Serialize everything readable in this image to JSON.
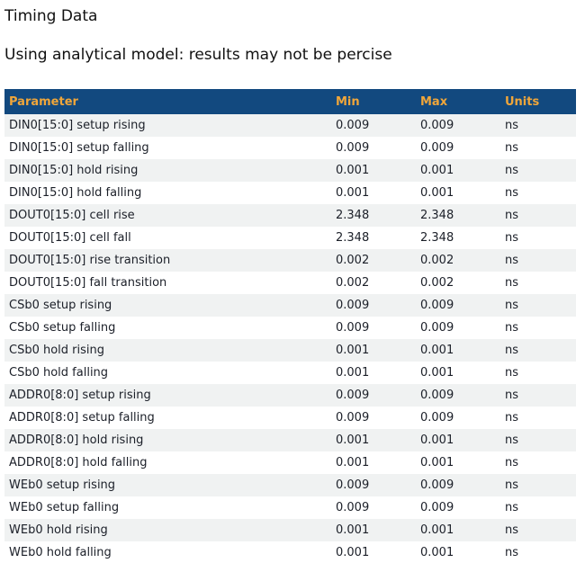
{
  "page": {
    "title": "Timing Data",
    "subtitle": "Using analytical model: results may not be percise"
  },
  "table": {
    "columns": [
      "Parameter",
      "Min",
      "Max",
      "Units"
    ],
    "rows": [
      {
        "parameter": "DIN0[15:0] setup rising",
        "min": "0.009",
        "max": "0.009",
        "units": "ns"
      },
      {
        "parameter": "DIN0[15:0] setup falling",
        "min": "0.009",
        "max": "0.009",
        "units": "ns"
      },
      {
        "parameter": "DIN0[15:0] hold rising",
        "min": "0.001",
        "max": "0.001",
        "units": "ns"
      },
      {
        "parameter": "DIN0[15:0] hold falling",
        "min": "0.001",
        "max": "0.001",
        "units": "ns"
      },
      {
        "parameter": "DOUT0[15:0] cell rise",
        "min": "2.348",
        "max": "2.348",
        "units": "ns"
      },
      {
        "parameter": "DOUT0[15:0] cell fall",
        "min": "2.348",
        "max": "2.348",
        "units": "ns"
      },
      {
        "parameter": "DOUT0[15:0] rise transition",
        "min": "0.002",
        "max": "0.002",
        "units": "ns"
      },
      {
        "parameter": "DOUT0[15:0] fall transition",
        "min": "0.002",
        "max": "0.002",
        "units": "ns"
      },
      {
        "parameter": "CSb0 setup rising",
        "min": "0.009",
        "max": "0.009",
        "units": "ns"
      },
      {
        "parameter": "CSb0 setup falling",
        "min": "0.009",
        "max": "0.009",
        "units": "ns"
      },
      {
        "parameter": "CSb0 hold rising",
        "min": "0.001",
        "max": "0.001",
        "units": "ns"
      },
      {
        "parameter": "CSb0 hold falling",
        "min": "0.001",
        "max": "0.001",
        "units": "ns"
      },
      {
        "parameter": "ADDR0[8:0] setup rising",
        "min": "0.009",
        "max": "0.009",
        "units": "ns"
      },
      {
        "parameter": "ADDR0[8:0] setup falling",
        "min": "0.009",
        "max": "0.009",
        "units": "ns"
      },
      {
        "parameter": "ADDR0[8:0] hold rising",
        "min": "0.001",
        "max": "0.001",
        "units": "ns"
      },
      {
        "parameter": "ADDR0[8:0] hold falling",
        "min": "0.001",
        "max": "0.001",
        "units": "ns"
      },
      {
        "parameter": "WEb0 setup rising",
        "min": "0.009",
        "max": "0.009",
        "units": "ns"
      },
      {
        "parameter": "WEb0 setup falling",
        "min": "0.009",
        "max": "0.009",
        "units": "ns"
      },
      {
        "parameter": "WEb0 hold rising",
        "min": "0.001",
        "max": "0.001",
        "units": "ns"
      },
      {
        "parameter": "WEb0 hold falling",
        "min": "0.001",
        "max": "0.001",
        "units": "ns"
      }
    ]
  },
  "colors": {
    "header_bg": "#12497f",
    "header_text": "#f0a63a",
    "row_alt_bg": "#f0f2f2",
    "row_bg": "#ffffff",
    "row_text": "#1b1f28",
    "heading_text": "#111111"
  }
}
